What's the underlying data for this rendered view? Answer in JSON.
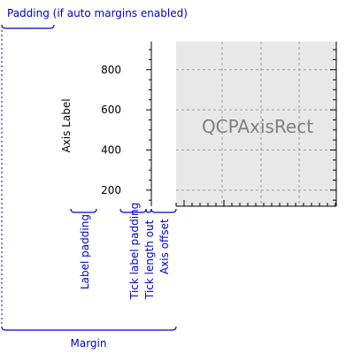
{
  "annotations": {
    "padding": "Padding (if auto margins enabled)",
    "margin": "Margin",
    "label_padding": "Label padding",
    "tick_label_padding": "Tick label padding",
    "tick_length_out": "Tick length out",
    "axis_offset": "Axis offset"
  },
  "axis": {
    "label": "Axis Label",
    "ticks": [
      "200",
      "400",
      "600",
      "800"
    ],
    "tick_values": [
      200,
      400,
      600,
      800
    ],
    "range": [
      120,
      940
    ]
  },
  "axis_rect": {
    "label": "QCPAxisRect",
    "background": "#e8e8e8"
  },
  "colors": {
    "annotation": "#0000cc",
    "grid": "#a0a0a0"
  }
}
